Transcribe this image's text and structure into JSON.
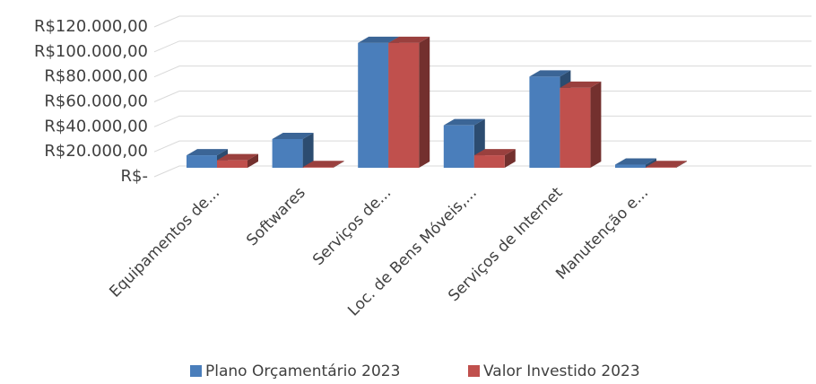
{
  "chart_data": {
    "type": "bar3d",
    "categories": [
      "Equipamentos de...",
      "Softwares",
      "Serviços de...",
      "Loc. de Bens Móveis,...",
      "Serviços de Internet",
      "Manutenção e..."
    ],
    "series": [
      {
        "name": "Plano Orçamentário 2023",
        "color": "#4a7ebb",
        "values": [
          10000,
          23000,
          100000,
          34000,
          73000,
          2500
        ]
      },
      {
        "name": "Valor Investido 2023",
        "color": "#c0504d",
        "values": [
          6000,
          500,
          100000,
          10000,
          64000,
          500
        ]
      }
    ],
    "ylim": [
      0,
      120000
    ],
    "yticks": [
      {
        "value": 0,
        "label": "R$-"
      },
      {
        "value": 20000,
        "label": "R$20.000,00"
      },
      {
        "value": 40000,
        "label": "R$40.000,00"
      },
      {
        "value": 60000,
        "label": "R$60.000,00"
      },
      {
        "value": 80000,
        "label": "R$80.000,00"
      },
      {
        "value": 100000,
        "label": "R$100.000,00"
      },
      {
        "value": 120000,
        "label": "R$120.000,00"
      }
    ],
    "grid": true,
    "legend": "bottom"
  }
}
